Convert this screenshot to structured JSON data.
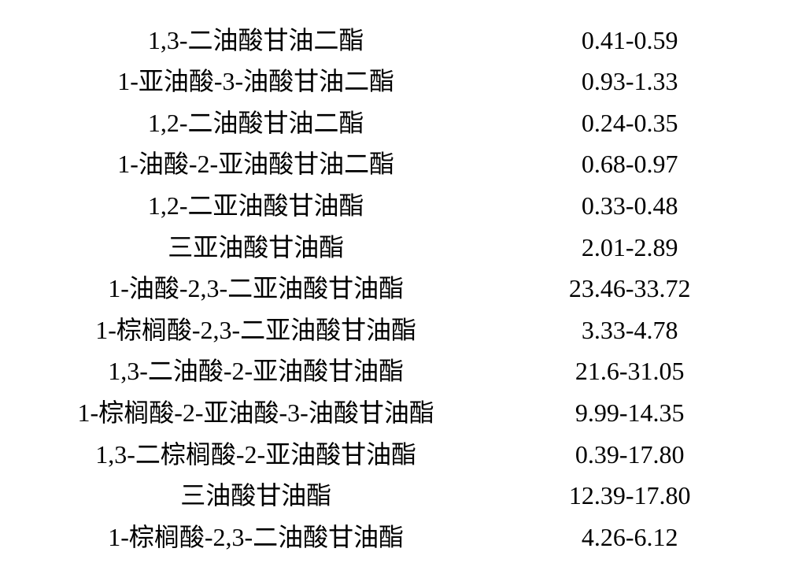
{
  "type": "table",
  "background_color": "#ffffff",
  "text_color": "#000000",
  "font_family": "SimSun",
  "font_size": 32,
  "columns": [
    "compound_name",
    "value_range"
  ],
  "column_alignment": [
    "center",
    "center"
  ],
  "column_ratio": [
    62,
    38
  ],
  "rows": [
    {
      "label": "1,3-二油酸甘油二酯",
      "value": "0.41-0.59"
    },
    {
      "label": "1-亚油酸-3-油酸甘油二酯",
      "value": "0.93-1.33"
    },
    {
      "label": "1,2-二油酸甘油二酯",
      "value": "0.24-0.35"
    },
    {
      "label": "1-油酸-2-亚油酸甘油二酯",
      "value": "0.68-0.97"
    },
    {
      "label": "1,2-二亚油酸甘油酯",
      "value": "0.33-0.48"
    },
    {
      "label": "三亚油酸甘油酯",
      "value": "2.01-2.89"
    },
    {
      "label": "1-油酸-2,3-二亚油酸甘油酯",
      "value": "23.46-33.72"
    },
    {
      "label": "1-棕榈酸-2,3-二亚油酸甘油酯",
      "value": "3.33-4.78"
    },
    {
      "label": "1,3-二油酸-2-亚油酸甘油酯",
      "value": "21.6-31.05"
    },
    {
      "label": "1-棕榈酸-2-亚油酸-3-油酸甘油酯",
      "value": "9.99-14.35"
    },
    {
      "label": "1,3-二棕榈酸-2-亚油酸甘油酯",
      "value": "0.39-17.80"
    },
    {
      "label": "三油酸甘油酯",
      "value": "12.39-17.80"
    },
    {
      "label": "1-棕榈酸-2,3-二油酸甘油酯",
      "value": "4.26-6.12"
    }
  ]
}
